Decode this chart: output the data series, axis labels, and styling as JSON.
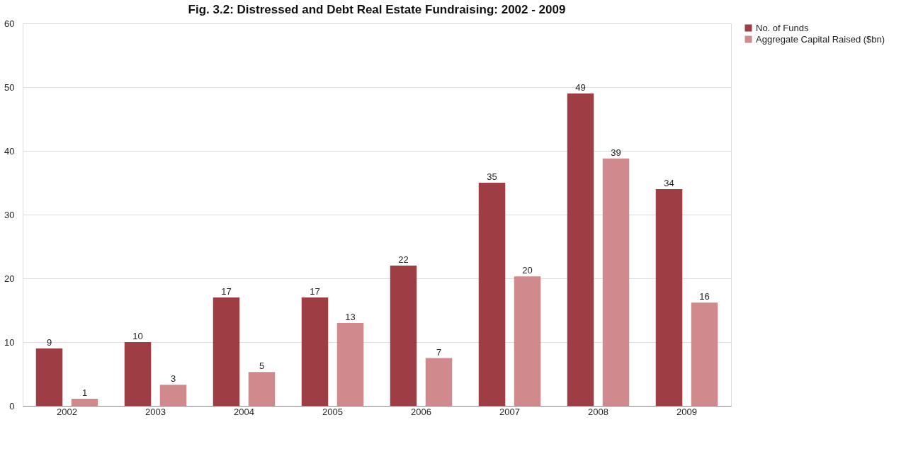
{
  "chart_data": {
    "type": "bar",
    "title": "Fig. 3.2: Distressed and Debt Real Estate Fundraising: 2002 - 2009",
    "categories": [
      "2002",
      "2003",
      "2004",
      "2005",
      "2006",
      "2007",
      "2008",
      "2009"
    ],
    "series": [
      {
        "name": "No. of Funds",
        "color": "#9e3d43",
        "values": [
          9,
          10,
          17,
          17,
          22,
          35,
          49,
          34
        ],
        "value_labels": [
          "9",
          "10",
          "17",
          "17",
          "22",
          "35",
          "49",
          "34"
        ]
      },
      {
        "name": "Aggregate Capital Raised ($bn)",
        "color": "#d08a8d",
        "values": [
          1.1,
          3.3,
          5.3,
          13,
          7.5,
          20.3,
          38.8,
          16.2
        ],
        "value_labels": [
          "1",
          "3",
          "5",
          "13",
          "7",
          "20",
          "39",
          "16"
        ]
      }
    ],
    "ylim": [
      0,
      60
    ],
    "yticks": [
      0,
      10,
      20,
      30,
      40,
      50,
      60
    ],
    "grid": "y",
    "legend": "right"
  }
}
